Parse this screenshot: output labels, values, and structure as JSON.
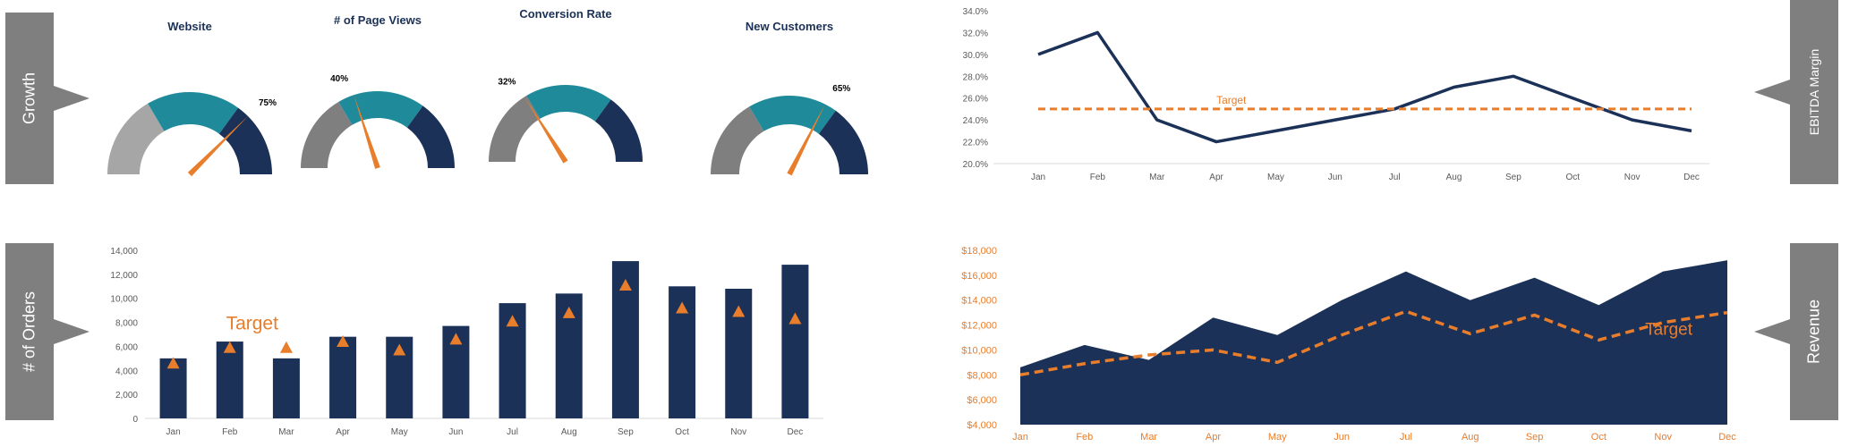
{
  "labels": {
    "growth": "Growth",
    "orders": "# of Orders",
    "ebitda": "EBITDA Margin",
    "revenue": "Revenue"
  },
  "colors": {
    "navy": "#1b3157",
    "teal": "#1f8a9a",
    "grey": "#7f7f7f",
    "lightgrey": "#a6a6a6",
    "orange": "#e87d2b"
  },
  "gauges": [
    {
      "title": "Website",
      "value_label": "75%",
      "value": 0.75
    },
    {
      "title": "# of Page Views",
      "value_label": "40%",
      "value": 0.4
    },
    {
      "title": "Conversion Rate",
      "value_label": "32%",
      "value": 0.32
    },
    {
      "title": "New Customers",
      "value_label": "65%",
      "value": 0.65
    }
  ],
  "chart_data": [
    {
      "type": "bar",
      "name": "orders",
      "categories": [
        "Jan",
        "Feb",
        "Mar",
        "Apr",
        "May",
        "Jun",
        "Jul",
        "Aug",
        "Sep",
        "Oct",
        "Nov",
        "Dec"
      ],
      "series": [
        {
          "values": [
            5000,
            6400,
            5000,
            6800,
            6800,
            7700,
            9600,
            10400,
            13100,
            11000,
            10800,
            12800
          ]
        },
        {
          "name": "Target",
          "values": [
            4600,
            5900,
            5900,
            6400,
            5700,
            6600,
            8100,
            8800,
            11100,
            9200,
            8900,
            8300
          ]
        }
      ],
      "yticks": [
        "0",
        "2,000",
        "4,000",
        "6,000",
        "8,000",
        "10,000",
        "12,000",
        "14,000"
      ],
      "ylim": [
        0,
        14000
      ],
      "annotation": "Target"
    },
    {
      "type": "line",
      "name": "ebitda",
      "categories": [
        "Jan",
        "Feb",
        "Mar",
        "Apr",
        "May",
        "Jun",
        "Jul",
        "Aug",
        "Sep",
        "Oct",
        "Nov",
        "Dec"
      ],
      "series": [
        {
          "values": [
            30.0,
            32.0,
            24.0,
            22.0,
            23.0,
            24.0,
            25.0,
            27.0,
            28.0,
            26.0,
            24.0,
            23.0
          ]
        }
      ],
      "target": 25.0,
      "target_label": "Target",
      "yticks": [
        "20.0%",
        "22.0%",
        "24.0%",
        "26.0%",
        "28.0%",
        "30.0%",
        "32.0%",
        "34.0%"
      ],
      "ylim": [
        20,
        34
      ]
    },
    {
      "type": "area",
      "name": "revenue",
      "categories": [
        "Jan",
        "Feb",
        "Mar",
        "Apr",
        "May",
        "Jun",
        "Jul",
        "Aug",
        "Sep",
        "Oct",
        "Nov",
        "Dec"
      ],
      "series": [
        {
          "values": [
            8600,
            10400,
            9200,
            12600,
            11200,
            14000,
            16300,
            14000,
            15800,
            13600,
            16300,
            17200
          ]
        },
        {
          "name": "Target",
          "values": [
            8000,
            8900,
            9600,
            10000,
            9000,
            11200,
            13100,
            11300,
            12800,
            10800,
            12200,
            13000
          ]
        }
      ],
      "yticks": [
        "$4,000",
        "$6,000",
        "$8,000",
        "$10,000",
        "$12,000",
        "$14,000",
        "$16,000",
        "$18,000"
      ],
      "ylim": [
        4000,
        18000
      ],
      "annotation": "Target"
    }
  ]
}
